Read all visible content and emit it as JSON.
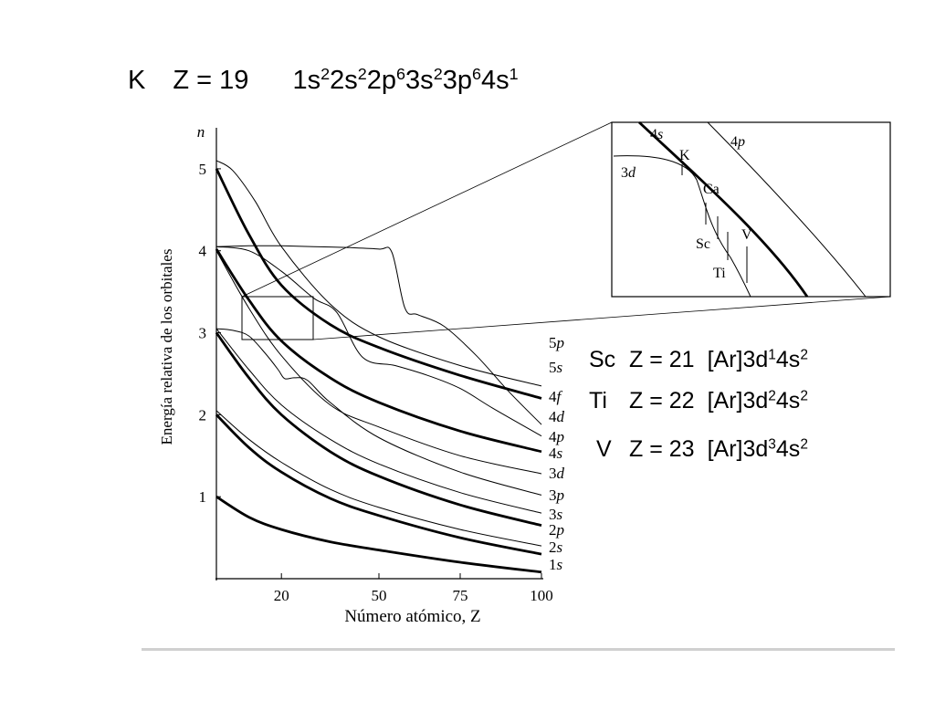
{
  "header": {
    "symbol": "K",
    "z_text": "Z = 19",
    "config": [
      {
        "t": "1s",
        "s": "2"
      },
      {
        "t": "2s",
        "s": "2"
      },
      {
        "t": "2p",
        "s": "6"
      },
      {
        "t": "3s",
        "s": "2"
      },
      {
        "t": "3p",
        "s": "6"
      },
      {
        "t": "4s",
        "s": "1"
      }
    ]
  },
  "elements": [
    {
      "symbol": "Sc",
      "z_text": "Z = 21",
      "config": [
        {
          "t": "[Ar]3d",
          "s": "1"
        },
        {
          "t": "4s",
          "s": "2"
        }
      ]
    },
    {
      "symbol": "Ti",
      "z_text": "Z = 22",
      "config": [
        {
          "t": "[Ar]3d",
          "s": "2"
        },
        {
          "t": "4s",
          "s": "2"
        }
      ]
    },
    {
      "symbol": "V",
      "z_text": "Z = 23",
      "config": [
        {
          "t": "[Ar]3d",
          "s": "3"
        },
        {
          "t": "4s",
          "s": "2"
        }
      ]
    }
  ],
  "chart_data": {
    "type": "line",
    "title": "",
    "xlabel": "Número atómico, Z",
    "ylabel": "Energía relativa de los orbitales",
    "y_axis_symbol": "n",
    "xlim": [
      0,
      100
    ],
    "ylim": [
      0,
      5.5
    ],
    "x_ticks": [
      20,
      50,
      75,
      100
    ],
    "y_ticks": [
      1,
      2,
      3,
      4,
      5
    ],
    "grid": false,
    "series": [
      {
        "name": "1s",
        "bold": true,
        "x": [
          0,
          10,
          20,
          35,
          50,
          75,
          100
        ],
        "y": [
          1.0,
          0.75,
          0.6,
          0.45,
          0.35,
          0.2,
          0.08
        ]
      },
      {
        "name": "2s",
        "bold": true,
        "x": [
          0,
          10,
          20,
          35,
          50,
          75,
          100
        ],
        "y": [
          2.0,
          1.6,
          1.3,
          0.98,
          0.77,
          0.5,
          0.3
        ]
      },
      {
        "name": "2p",
        "bold": false,
        "x": [
          0,
          10,
          20,
          35,
          50,
          75,
          100
        ],
        "y": [
          2.05,
          1.7,
          1.42,
          1.09,
          0.87,
          0.6,
          0.4
        ]
      },
      {
        "name": "3s",
        "bold": true,
        "x": [
          0,
          10,
          20,
          35,
          50,
          75,
          100
        ],
        "y": [
          3.0,
          2.45,
          2.0,
          1.55,
          1.25,
          0.9,
          0.65
        ]
      },
      {
        "name": "3p",
        "bold": false,
        "x": [
          0,
          10,
          20,
          35,
          50,
          75,
          100
        ],
        "y": [
          3.05,
          2.55,
          2.12,
          1.7,
          1.4,
          1.05,
          0.8
        ]
      },
      {
        "name": "3d",
        "bold": false,
        "x": [
          0,
          5,
          10,
          15,
          19,
          21,
          24,
          28,
          35,
          50,
          75,
          100
        ],
        "y": [
          3.05,
          3.03,
          2.96,
          2.75,
          2.55,
          2.44,
          2.45,
          2.42,
          2.15,
          1.72,
          1.3,
          1.02
        ]
      },
      {
        "name": "4s",
        "bold": false,
        "x": [
          0,
          10,
          20,
          35,
          50,
          75,
          100
        ],
        "y": [
          4.0,
          3.3,
          2.72,
          2.12,
          1.85,
          1.5,
          1.28
        ]
      },
      {
        "name": "4p",
        "bold": true,
        "x": [
          0,
          10,
          20,
          35,
          50,
          75,
          100
        ],
        "y": [
          4.02,
          3.4,
          2.9,
          2.45,
          2.15,
          1.8,
          1.55
        ]
      },
      {
        "name": "4d",
        "bold": false,
        "x": [
          0,
          10,
          20,
          30,
          37,
          45,
          55,
          65,
          75,
          85,
          100
        ],
        "y": [
          4.05,
          4.0,
          3.75,
          3.42,
          3.25,
          2.7,
          2.6,
          2.48,
          2.32,
          2.08,
          1.74
        ]
      },
      {
        "name": "4f",
        "bold": false,
        "x": [
          0,
          10,
          20,
          30,
          40,
          50,
          54,
          58,
          62,
          70,
          80,
          90,
          100
        ],
        "y": [
          4.05,
          4.06,
          4.06,
          4.05,
          4.04,
          4.02,
          3.98,
          3.3,
          3.22,
          3.08,
          2.72,
          2.28,
          1.88
        ]
      },
      {
        "name": "5s",
        "bold": true,
        "x": [
          0,
          10,
          20,
          35,
          50,
          75,
          100
        ],
        "y": [
          5.0,
          4.2,
          3.58,
          3.1,
          2.82,
          2.48,
          2.2
        ]
      },
      {
        "name": "5p",
        "bold": false,
        "x": [
          0,
          5,
          12,
          20,
          35,
          50,
          75,
          100
        ],
        "y": [
          5.1,
          4.98,
          4.6,
          4.05,
          3.35,
          2.95,
          2.6,
          2.35
        ]
      }
    ],
    "inset": {
      "labels": [
        "4s",
        "4p",
        "3d",
        "K",
        "Ca",
        "Sc",
        "Ti",
        "V"
      ]
    }
  }
}
